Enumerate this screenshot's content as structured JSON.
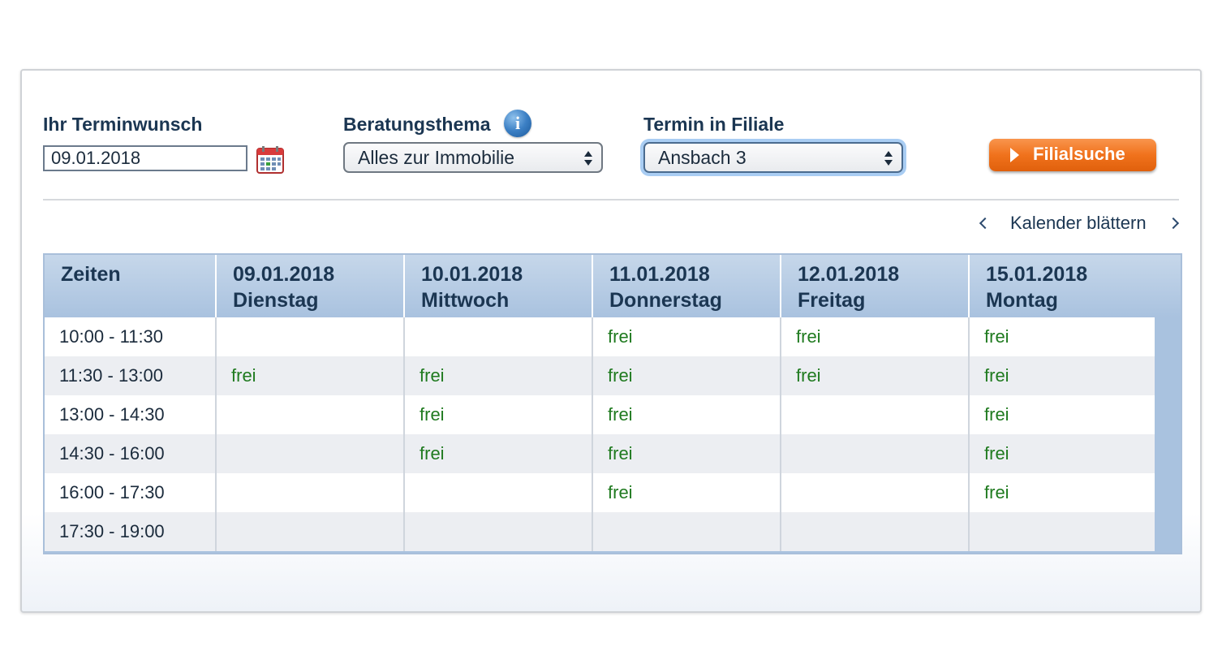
{
  "form": {
    "wish_label": "Ihr Terminwunsch",
    "wish_date": "09.01.2018",
    "topic_label": "Beratungsthema",
    "topic_value": "Alles zur Immobilie",
    "branch_label": "Termin in Filiale",
    "branch_value": "Ansbach 3",
    "search_button": "Filialsuche"
  },
  "calendar_nav": {
    "label": "Kalender blättern"
  },
  "table": {
    "times_header": "Zeiten",
    "days": [
      {
        "date": "09.01.2018",
        "weekday": "Dienstag"
      },
      {
        "date": "10.01.2018",
        "weekday": "Mittwoch"
      },
      {
        "date": "11.01.2018",
        "weekday": "Donnerstag"
      },
      {
        "date": "12.01.2018",
        "weekday": "Freitag"
      },
      {
        "date": "15.01.2018",
        "weekday": "Montag"
      }
    ],
    "rows": [
      {
        "time": "10:00 - 11:30",
        "slots": [
          "",
          "",
          "frei",
          "frei",
          "frei"
        ]
      },
      {
        "time": "11:30 - 13:00",
        "slots": [
          "frei",
          "frei",
          "frei",
          "frei",
          "frei"
        ]
      },
      {
        "time": "13:00 - 14:30",
        "slots": [
          "",
          "frei",
          "frei",
          "",
          "frei"
        ]
      },
      {
        "time": "14:30 - 16:00",
        "slots": [
          "",
          "frei",
          "frei",
          "",
          "frei"
        ]
      },
      {
        "time": "16:00 - 17:30",
        "slots": [
          "",
          "",
          "frei",
          "",
          "frei"
        ]
      },
      {
        "time": "17:30 - 19:00",
        "slots": [
          "",
          "",
          "",
          "",
          ""
        ]
      }
    ]
  },
  "colors": {
    "accent_orange": "#f0721c",
    "header_blue": "#a9c2df",
    "free_green": "#1f7a1f"
  }
}
